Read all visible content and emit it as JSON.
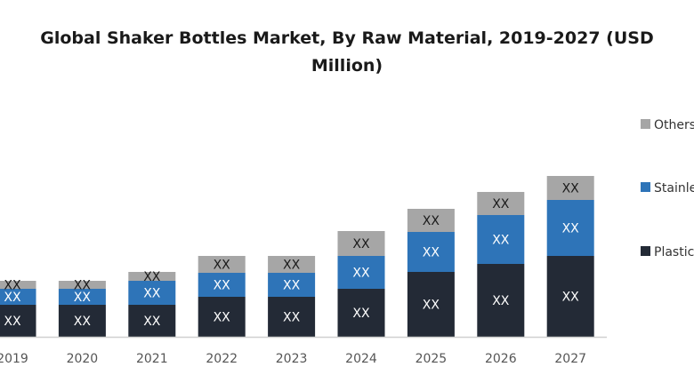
{
  "chart_data": {
    "type": "bar",
    "stacked": true,
    "title_lines": [
      "Global Shaker Bottles Market, By Raw Material, 2019-2027 (USD",
      "Million)"
    ],
    "xlabel": "",
    "ylabel": "",
    "ylim": [
      0,
      200
    ],
    "grid": false,
    "legend_position": "right",
    "categories": [
      "2019",
      "2020",
      "2021",
      "2022",
      "2023",
      "2024",
      "2025",
      "2026",
      "2027"
    ],
    "series": [
      {
        "name": "Plastic",
        "color": "#232a36",
        "label_color": "#ffffff",
        "values": [
          36,
          36,
          36,
          45,
          45,
          54,
          73,
          82,
          91
        ],
        "labels": [
          "XX",
          "XX",
          "XX",
          "XX",
          "XX",
          "XX",
          "XX",
          "XX",
          "XX"
        ]
      },
      {
        "name": "Stainless Steel",
        "color": "#2e74b8",
        "label_color": "#ffffff",
        "values": [
          18,
          18,
          27,
          27,
          27,
          37,
          45,
          55,
          63
        ],
        "labels": [
          "XX",
          "XX",
          "XX",
          "XX",
          "XX",
          "XX",
          "XX",
          "XX",
          "XX"
        ]
      },
      {
        "name": "Others",
        "color": "#a6a6a6",
        "label_color": "#1a1a1a",
        "values": [
          9,
          9,
          10,
          19,
          19,
          28,
          26,
          26,
          27
        ],
        "labels": [
          "XX",
          "XX",
          "XX",
          "XX",
          "XX",
          "XX",
          "XX",
          "XX",
          "XX"
        ]
      }
    ],
    "legend_order": [
      "Others",
      "Stainless Steel",
      "Plastic"
    ]
  }
}
